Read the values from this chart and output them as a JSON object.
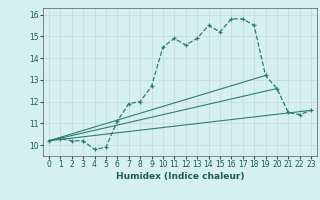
{
  "xlabel": "Humidex (Indice chaleur)",
  "bg_color": "#d6f0f0",
  "grid_color": "#c8dede",
  "line_color": "#2e7d72",
  "xlim": [
    -0.5,
    23.5
  ],
  "ylim": [
    9.5,
    16.3
  ],
  "xticks": [
    0,
    1,
    2,
    3,
    4,
    5,
    6,
    7,
    8,
    9,
    10,
    11,
    12,
    13,
    14,
    15,
    16,
    17,
    18,
    19,
    20,
    21,
    22,
    23
  ],
  "yticks": [
    10,
    11,
    12,
    13,
    14,
    15,
    16
  ],
  "curve1_x": [
    0,
    1,
    2,
    3,
    4,
    5,
    6,
    7,
    8,
    9,
    10,
    11,
    12,
    13,
    14,
    15,
    16,
    17,
    18,
    19,
    20,
    21,
    22,
    23
  ],
  "curve1_y": [
    10.2,
    10.3,
    10.2,
    10.2,
    9.8,
    9.9,
    11.1,
    11.9,
    12.0,
    12.7,
    14.5,
    14.9,
    14.6,
    14.9,
    15.5,
    15.2,
    15.8,
    15.8,
    15.5,
    13.2,
    12.6,
    11.5,
    11.4,
    11.6
  ],
  "line2_x": [
    0,
    23
  ],
  "line2_y": [
    10.2,
    11.6
  ],
  "line3_x": [
    0,
    20
  ],
  "line3_y": [
    10.2,
    12.6
  ],
  "line4_x": [
    0,
    19
  ],
  "line4_y": [
    10.2,
    13.2
  ]
}
